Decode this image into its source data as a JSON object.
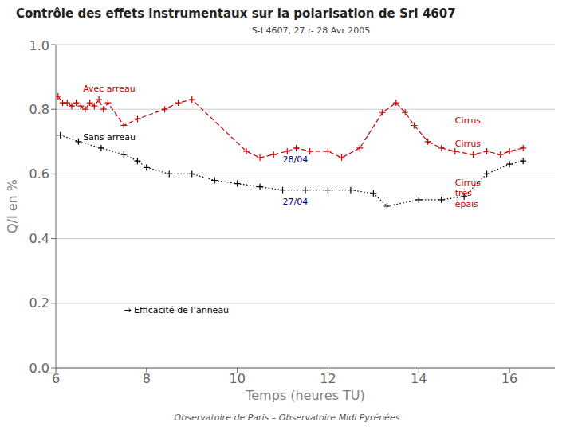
{
  "chart_data": {
    "type": "line",
    "title": "Contrôle des effets instrumentaux sur la polarisation de SrI 4607",
    "subtitle": "S-I 4607, 27 r- 28 Avr 2005",
    "xlabel": "Temps (heures TU)",
    "ylabel": "Q/I en %",
    "footer": "Observatoire de Paris – Observatoire Midi Pyrénées",
    "xlim": [
      6,
      17
    ],
    "ylim": [
      0.0,
      1.0
    ],
    "xticks": [
      6,
      8,
      10,
      12,
      14,
      16
    ],
    "yticks": [
      {
        "value": 0.0,
        "label": "0.0"
      },
      0.2,
      0.4,
      0.6,
      0.8,
      {
        "value": 1.0,
        "label": "1.0"
      }
    ],
    "grid": "y",
    "series": [
      {
        "color": "#cc0000",
        "line_style": "dashed",
        "marker": "plus",
        "x": [
          6.05,
          6.15,
          6.25,
          6.35,
          6.45,
          6.55,
          6.65,
          6.75,
          6.85,
          6.95,
          7.05,
          7.15,
          7.5,
          7.8,
          8.4,
          8.7,
          9.0,
          10.2,
          10.5,
          10.8,
          11.1,
          11.3,
          11.6,
          12.0,
          12.3,
          12.7,
          13.2,
          13.5,
          13.7,
          13.9,
          14.2,
          14.5,
          14.8,
          15.2,
          15.5,
          15.8,
          16.0,
          16.3
        ],
        "values": [
          0.84,
          0.82,
          0.82,
          0.81,
          0.82,
          0.81,
          0.8,
          0.82,
          0.81,
          0.83,
          0.8,
          0.82,
          0.75,
          0.77,
          0.8,
          0.82,
          0.83,
          0.67,
          0.65,
          0.66,
          0.67,
          0.68,
          0.67,
          0.67,
          0.65,
          0.68,
          0.79,
          0.82,
          0.79,
          0.75,
          0.7,
          0.68,
          0.67,
          0.66,
          0.67,
          0.66,
          0.67,
          0.68
        ]
      },
      {
        "color": "#000000",
        "line_style": "dotted",
        "marker": "plus",
        "x": [
          6.1,
          6.5,
          7.0,
          7.5,
          7.8,
          8.0,
          8.5,
          9.0,
          9.5,
          10.0,
          10.5,
          11.0,
          11.5,
          12.0,
          12.5,
          13.0,
          13.3,
          14.0,
          14.5,
          15.0,
          15.5,
          16.0,
          16.3
        ],
        "values": [
          0.72,
          0.7,
          0.68,
          0.66,
          0.64,
          0.62,
          0.6,
          0.6,
          0.58,
          0.57,
          0.56,
          0.55,
          0.55,
          0.55,
          0.55,
          0.54,
          0.5,
          0.52,
          0.52,
          0.53,
          0.6,
          0.63,
          0.64
        ]
      }
    ],
    "annotations": [
      {
        "text": "Avec arreau",
        "x": 6.6,
        "y": 0.855,
        "color": "#cc0000"
      },
      {
        "text": "Sans arreau",
        "x": 6.6,
        "y": 0.705,
        "color": "#000000"
      },
      {
        "text": "28/04",
        "x": 11.0,
        "y": 0.635,
        "color": "#000080"
      },
      {
        "text": "27/04",
        "x": 11.0,
        "y": 0.505,
        "color": "#000080"
      },
      {
        "text": "Cirrus",
        "x": 14.8,
        "y": 0.755,
        "color": "#cc0000"
      },
      {
        "text": "Cirrus",
        "x": 14.8,
        "y": 0.685,
        "color": "#cc0000"
      },
      {
        "text": "Cirrus\ntrès\nèpais",
        "x": 14.8,
        "y": 0.565,
        "color": "#cc0000"
      },
      {
        "text": "→ Efficacité de l’anneau",
        "x": 7.5,
        "y": 0.17,
        "color": "#000000"
      }
    ]
  }
}
